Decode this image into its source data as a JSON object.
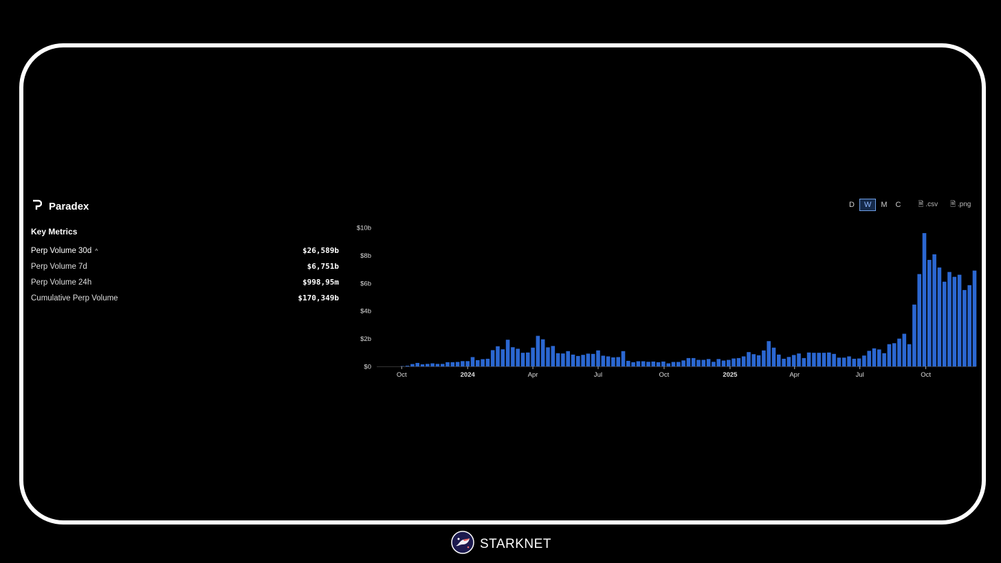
{
  "app": {
    "name": "Paradex",
    "logo_icon": "paradex-p-icon"
  },
  "key_metrics": {
    "title": "Key Metrics",
    "items": [
      {
        "label": "Perp Volume 30d",
        "value": "$26,589b",
        "expanded": true
      },
      {
        "label": "Perp Volume 7d",
        "value": "$6,751b"
      },
      {
        "label": "Perp Volume 24h",
        "value": "$998,95m"
      },
      {
        "label": "Cumulative Perp Volume",
        "value": "$170,349b"
      }
    ]
  },
  "controls": {
    "intervals": [
      {
        "label": "D"
      },
      {
        "label": "W",
        "active": true
      },
      {
        "label": "M"
      },
      {
        "label": "C"
      }
    ],
    "exports": [
      {
        "label": ".csv",
        "icon": "file-download-icon"
      },
      {
        "label": ".png",
        "icon": "file-download-icon"
      }
    ]
  },
  "footer": {
    "brand": "STARKNET"
  },
  "colors": {
    "bar": "#2b67d1",
    "accent": "#6fa0e8",
    "background": "#000000"
  },
  "chart_data": {
    "type": "bar",
    "interval": "weekly",
    "start_date": "2023-09-25",
    "unit": "$b",
    "ylim": [
      0,
      10
    ],
    "yticks": [
      "$0",
      "$2b",
      "$4b",
      "$6b",
      "$8b",
      "$10b"
    ],
    "xticks": [
      {
        "label": "Oct",
        "date": "2023-10-01"
      },
      {
        "label": "2024",
        "date": "2024-01-01",
        "bold": true
      },
      {
        "label": "Apr",
        "date": "2024-04-01"
      },
      {
        "label": "Jul",
        "date": "2024-07-01"
      },
      {
        "label": "Oct",
        "date": "2024-10-01"
      },
      {
        "label": "2025",
        "date": "2025-01-01",
        "bold": true
      },
      {
        "label": "Apr",
        "date": "2025-04-01"
      },
      {
        "label": "Jul",
        "date": "2025-07-01"
      },
      {
        "label": "Oct",
        "date": "2025-10-01"
      }
    ],
    "grid": false,
    "values": [
      0.0,
      0.02,
      0.05,
      0.17,
      0.25,
      0.15,
      0.18,
      0.22,
      0.18,
      0.18,
      0.3,
      0.3,
      0.32,
      0.38,
      0.38,
      0.67,
      0.45,
      0.52,
      0.55,
      1.17,
      1.45,
      1.23,
      1.92,
      1.38,
      1.27,
      0.98,
      1.0,
      1.35,
      2.2,
      1.95,
      1.37,
      1.47,
      0.95,
      0.93,
      1.1,
      0.85,
      0.75,
      0.83,
      0.92,
      0.9,
      1.15,
      0.77,
      0.72,
      0.65,
      0.67,
      1.1,
      0.4,
      0.3,
      0.37,
      0.37,
      0.33,
      0.35,
      0.3,
      0.35,
      0.22,
      0.32,
      0.32,
      0.43,
      0.6,
      0.6,
      0.47,
      0.47,
      0.53,
      0.33,
      0.53,
      0.42,
      0.47,
      0.57,
      0.6,
      0.72,
      1.03,
      0.88,
      0.8,
      1.15,
      1.82,
      1.35,
      0.85,
      0.55,
      0.68,
      0.82,
      0.93,
      0.6,
      1.0,
      0.98,
      0.98,
      0.98,
      1.0,
      0.9,
      0.63,
      0.63,
      0.72,
      0.55,
      0.57,
      0.78,
      1.12,
      1.3,
      1.22,
      0.95,
      1.6,
      1.67,
      2.0,
      2.35,
      1.6,
      4.45,
      6.65,
      9.6,
      7.67,
      8.07,
      7.12,
      6.1,
      6.8,
      6.45,
      6.6,
      5.5,
      5.85,
      6.9
    ]
  }
}
